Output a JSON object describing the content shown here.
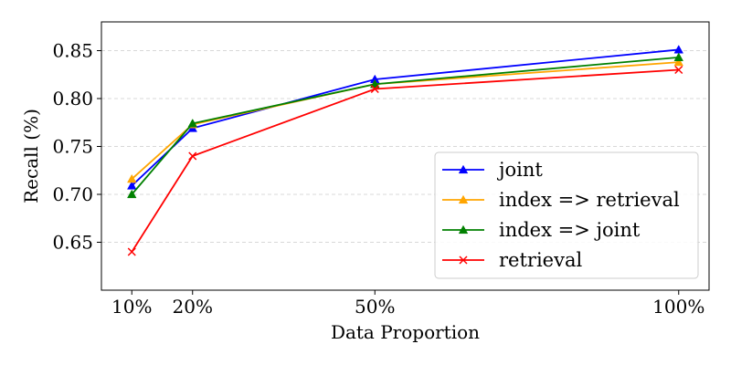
{
  "chart_data": {
    "type": "line",
    "title": "",
    "xlabel": "Data Proportion",
    "ylabel": "Recall (%)",
    "x": [
      10,
      20,
      50,
      100
    ],
    "x_tick_labels": [
      "10%",
      "20%",
      "50%",
      "100%"
    ],
    "xlim": [
      5,
      105
    ],
    "ylim": [
      0.6,
      0.88
    ],
    "y_ticks": [
      0.65,
      0.7,
      0.75,
      0.8,
      0.85
    ],
    "y_tick_labels": [
      "0.65",
      "0.70",
      "0.75",
      "0.80",
      "0.85"
    ],
    "grid": "horizontal dashed",
    "legend_position": "bottom-right",
    "series": [
      {
        "name": "joint",
        "values": [
          0.709,
          0.769,
          0.82,
          0.851
        ],
        "color": "#0000ff",
        "marker": "triangle"
      },
      {
        "name": "index => retrieval",
        "values": [
          0.716,
          0.773,
          0.815,
          0.838
        ],
        "color": "#ffa500",
        "marker": "triangle"
      },
      {
        "name": "index => joint",
        "values": [
          0.7,
          0.774,
          0.815,
          0.843
        ],
        "color": "#008000",
        "marker": "triangle"
      },
      {
        "name": "retrieval",
        "values": [
          0.64,
          0.74,
          0.81,
          0.83
        ],
        "color": "#ff0000",
        "marker": "x"
      }
    ]
  }
}
